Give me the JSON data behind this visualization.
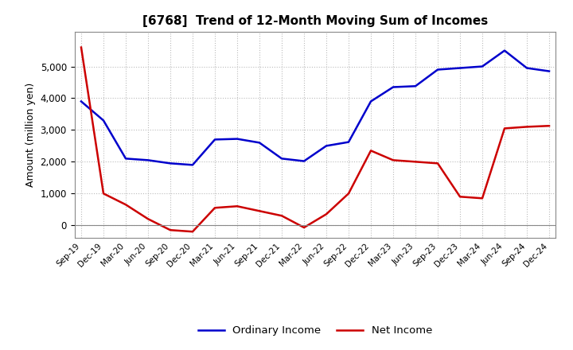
{
  "title": "[6768]  Trend of 12-Month Moving Sum of Incomes",
  "ylabel": "Amount (million yen)",
  "background_color": "#ffffff",
  "grid_color": "#bbbbbb",
  "line_color_ordinary": "#0000cc",
  "line_color_net": "#cc0000",
  "legend_ordinary": "Ordinary Income",
  "legend_net": "Net Income",
  "labels": [
    "Sep-19",
    "Dec-19",
    "Mar-20",
    "Jun-20",
    "Sep-20",
    "Dec-20",
    "Mar-21",
    "Jun-21",
    "Sep-21",
    "Dec-21",
    "Mar-22",
    "Jun-22",
    "Sep-22",
    "Dec-22",
    "Mar-23",
    "Jun-23",
    "Sep-23",
    "Dec-23",
    "Mar-24",
    "Jun-24",
    "Sep-24",
    "Dec-24"
  ],
  "ordinary_income": [
    3900,
    3300,
    2100,
    2050,
    1950,
    1900,
    2700,
    2720,
    2600,
    2100,
    2020,
    2500,
    2620,
    3900,
    4350,
    4380,
    4900,
    4950,
    5000,
    5500,
    4950,
    4850
  ],
  "net_income": [
    5600,
    1000,
    650,
    200,
    -150,
    -200,
    550,
    600,
    450,
    300,
    -70,
    350,
    1000,
    2350,
    2050,
    2000,
    1950,
    900,
    850,
    3050,
    3100,
    3130
  ],
  "ylim_min": -400,
  "ylim_max": 6100,
  "yticks": [
    0,
    1000,
    2000,
    3000,
    4000,
    5000
  ]
}
